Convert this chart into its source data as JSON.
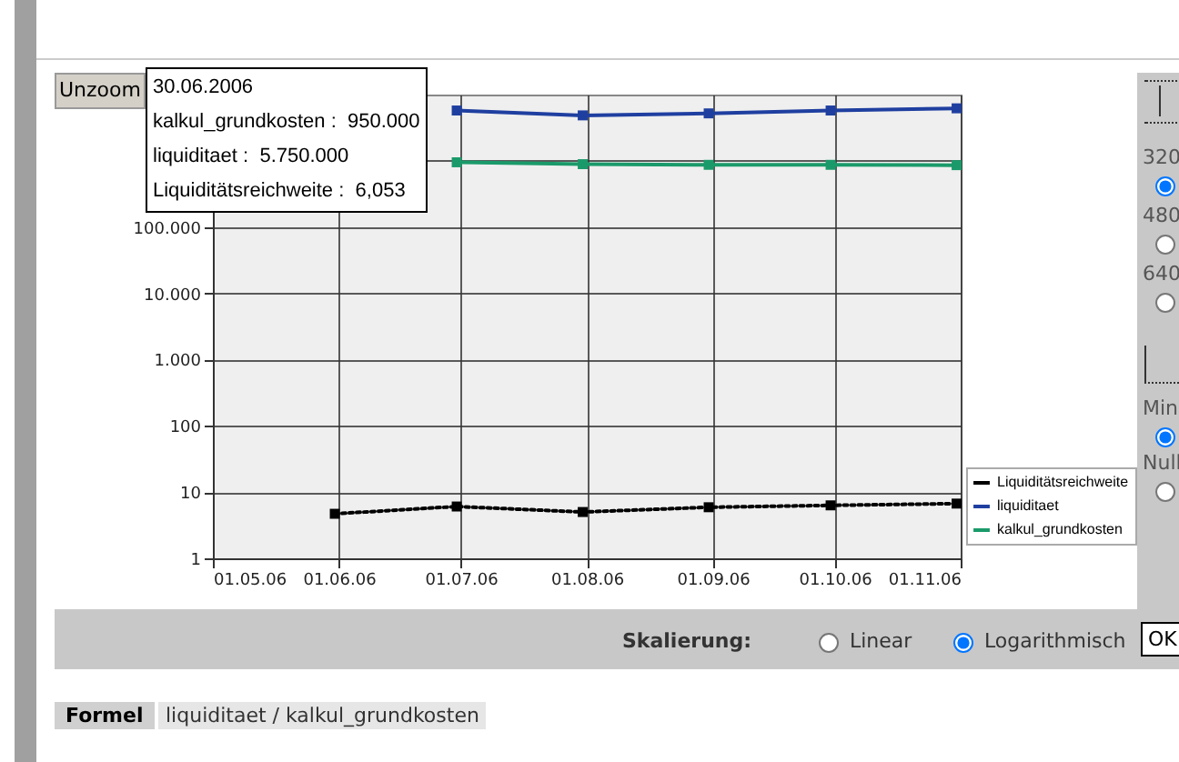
{
  "chart_data": {
    "type": "line",
    "x": [
      "2006-05-31",
      "2006-06-30",
      "2006-07-31",
      "2006-08-31",
      "2006-09-30",
      "2006-10-31"
    ],
    "series": [
      {
        "name": "Liquiditätsreichweite",
        "color": "#000000",
        "line_style": "dotted",
        "values": [
          4.7,
          6.053,
          5.0,
          5.9,
          6.3,
          6.7
        ]
      },
      {
        "name": "liquiditaet",
        "color": "#1f3fa0",
        "line_style": "solid",
        "values": [
          null,
          5750000,
          4850000,
          5200000,
          5750000,
          6200000
        ]
      },
      {
        "name": "kalkul_grundkosten",
        "color": "#1a9a6a",
        "line_style": "solid",
        "values": [
          null,
          950000,
          890000,
          870000,
          870000,
          860000
        ]
      }
    ],
    "log": "y",
    "ylim": [
      1,
      10000000
    ],
    "yticks": [
      {
        "value": 1,
        "label": "1"
      },
      {
        "value": 10,
        "label": "10"
      },
      {
        "value": 100,
        "label": "100"
      },
      {
        "value": 1000,
        "label": "1.000"
      },
      {
        "value": 10000,
        "label": "10.000"
      },
      {
        "value": 100000,
        "label": "100.000"
      },
      {
        "value": 1000000,
        "label": null
      }
    ],
    "xlim": [
      "2006-05-01",
      "2006-11-01"
    ],
    "xticks": [
      {
        "value": "2006-05-01",
        "label": "01.05.06"
      },
      {
        "value": "2006-06-01",
        "label": "01.06.06"
      },
      {
        "value": "2006-07-01",
        "label": "01.07.06"
      },
      {
        "value": "2006-08-01",
        "label": "01.08.06"
      },
      {
        "value": "2006-09-01",
        "label": "01.09.06"
      },
      {
        "value": "2006-10-01",
        "label": "01.10.06"
      },
      {
        "value": "2006-11-01",
        "label": "01.11.06"
      }
    ],
    "grid": true,
    "legend": "bottom right",
    "marker": "square",
    "annotations": [
      "Unzoom",
      "30.06.2006\nkalkul_grundkosten :  950.000\nliquiditaet :  5.750.000\nLiquiditätsreichweite :  6,053",
      "Skalierung:",
      "Linear",
      "Logarithmisch",
      "OK",
      "Formel",
      "liquiditaet / kalkul_grundkosten",
      "320",
      "480",
      "640",
      "Min",
      "Null"
    ]
  }
}
